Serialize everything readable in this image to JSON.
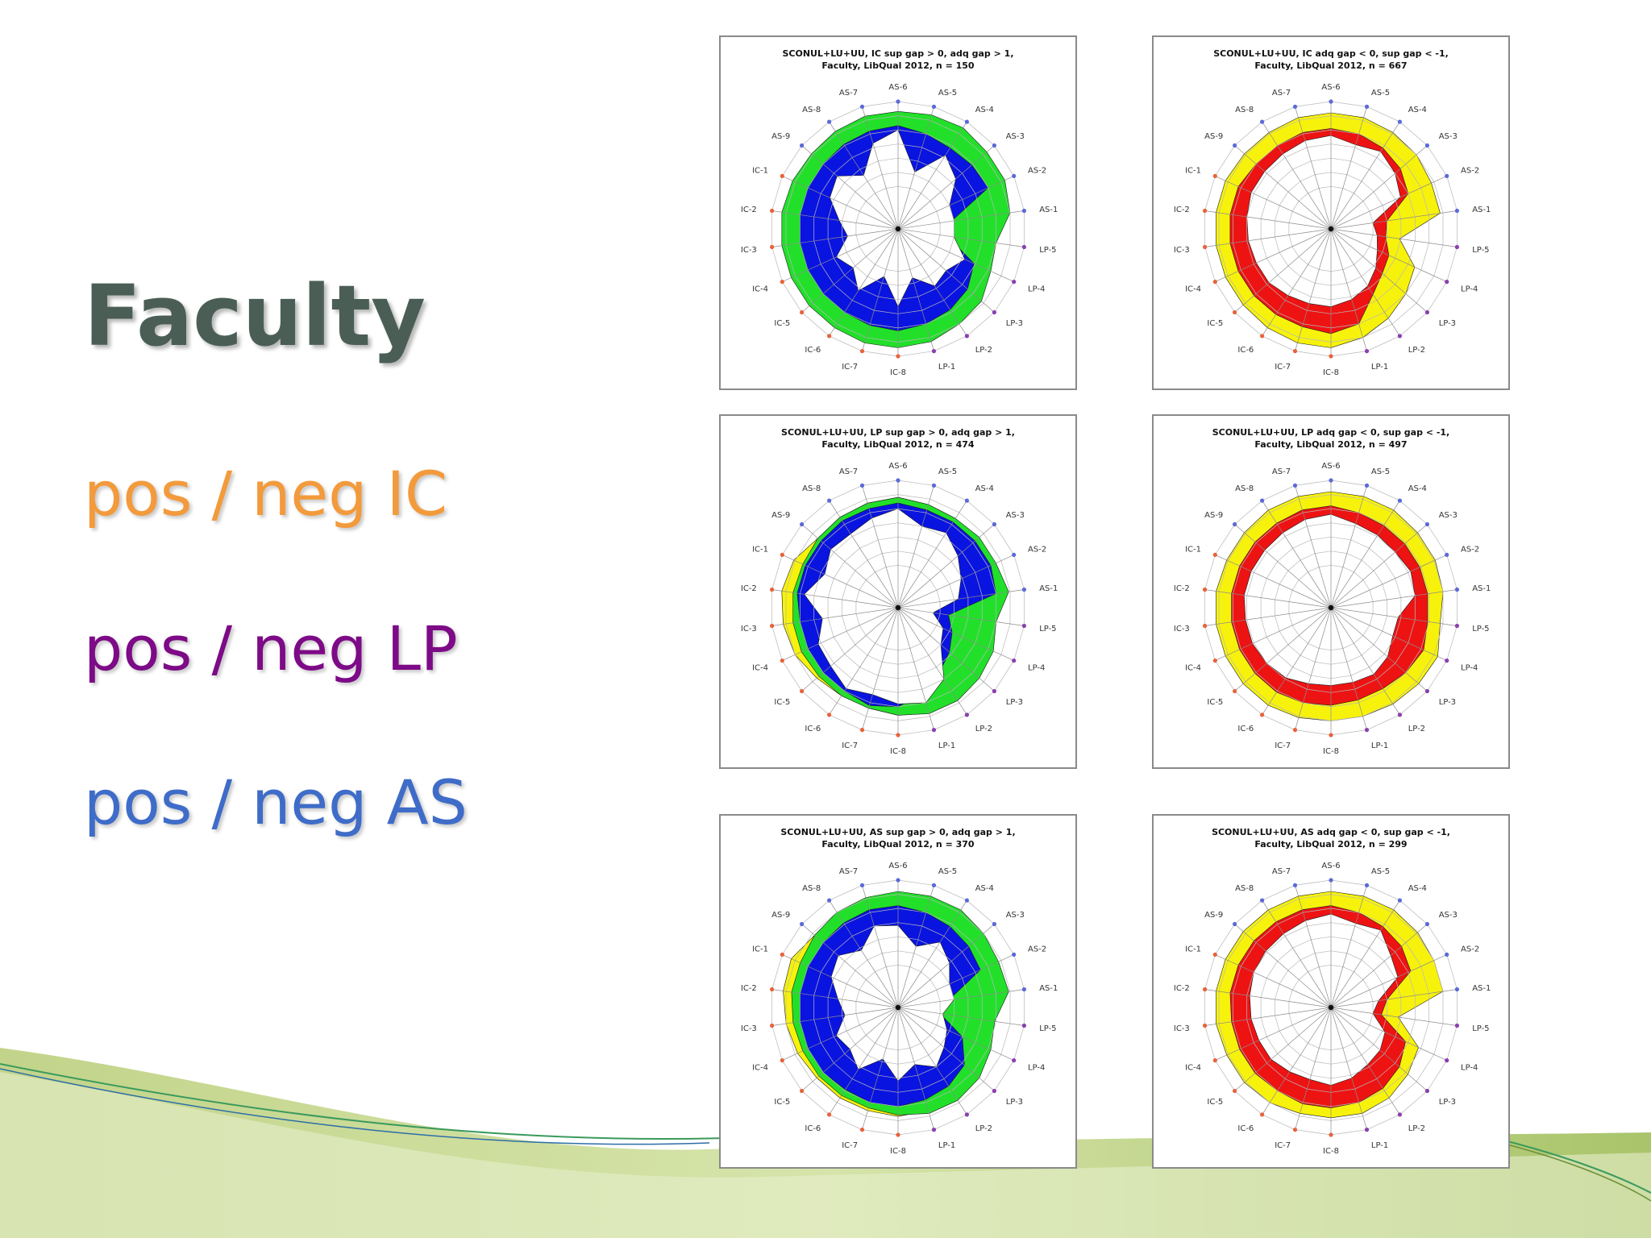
{
  "slide": {
    "title": "Faculty",
    "legend": [
      {
        "text": "pos / neg IC",
        "color": "#f39a3c"
      },
      {
        "text": "pos / neg LP",
        "color": "#7d0a86"
      },
      {
        "text": "pos / neg AS",
        "color": "#3e6cc8"
      }
    ]
  },
  "chart_data": [
    {
      "type": "radar",
      "title": "SCONUL+LU+UU, IC sup gap > 0, adq gap > 1,",
      "subtitle": "Faculty, LibQual 2012, n = 150",
      "axes": [
        "AS-6",
        "AS-5",
        "AS-4",
        "AS-3",
        "AS-2",
        "AS-1",
        "LP-5",
        "LP-4",
        "LP-3",
        "LP-2",
        "LP-1",
        "IC-8",
        "IC-7",
        "IC-6",
        "IC-5",
        "IC-4",
        "IC-3",
        "IC-2",
        "IC-1",
        "AS-9",
        "AS-8",
        "AS-7"
      ],
      "rlim": [
        0,
        9
      ],
      "rings": [
        3,
        4,
        5,
        6,
        7,
        8,
        9
      ],
      "series": [
        {
          "color": "#22e02a",
          "values": [
            8.3,
            8.4,
            8.5,
            8.3,
            8.3,
            8.0,
            7.0,
            7.2,
            7.8,
            8.0,
            8.3,
            8.4,
            8.4,
            8.3,
            8.3,
            8.3,
            8.3,
            8.3,
            8.2,
            8.1,
            8.2,
            8.3
          ]
        },
        {
          "color": "#0a14e0",
          "values": [
            7.3,
            7.0,
            6.8,
            6.9,
            7.0,
            3.8,
            3.5,
            5.9,
            6.5,
            6.8,
            7.0,
            7.2,
            7.1,
            7.0,
            7.0,
            7.0,
            7.0,
            7.0,
            7.0,
            7.0,
            7.1,
            7.2
          ]
        },
        {
          "color": "#ffffff",
          "values": [
            7.0,
            4.2,
            6.2,
            5.4,
            4.0,
            4.0,
            4.0,
            5.2,
            4.5,
            4.8,
            3.6,
            5.5,
            3.5,
            5.2,
            4.2,
            4.8,
            3.6,
            4.2,
            5.3,
            5.7,
            4.5,
            6.3
          ]
        }
      ]
    },
    {
      "type": "radar",
      "title": "SCONUL+LU+UU, IC adq gap < 0, sup gap < -1,",
      "subtitle": "Faculty, LibQual 2012, n = 667",
      "axes": [
        "AS-6",
        "AS-5",
        "AS-4",
        "AS-3",
        "AS-2",
        "AS-1",
        "LP-5",
        "LP-4",
        "LP-3",
        "LP-2",
        "LP-1",
        "IC-8",
        "IC-7",
        "IC-6",
        "IC-5",
        "IC-4",
        "IC-3",
        "IC-2",
        "IC-1",
        "AS-9",
        "AS-8",
        "AS-7"
      ],
      "rlim": [
        0,
        9
      ],
      "rings": [
        3,
        4,
        5,
        6,
        7,
        8,
        9
      ],
      "series": [
        {
          "color": "#f7f20c",
          "values": [
            8.2,
            8.2,
            8.1,
            8.0,
            7.8,
            7.8,
            4.9,
            6.5,
            7.0,
            7.5,
            8.0,
            8.4,
            8.4,
            8.3,
            8.2,
            8.2,
            8.2,
            8.2,
            8.2,
            8.1,
            8.1,
            8.2
          ]
        },
        {
          "color": "#ee1313",
          "values": [
            7.1,
            7.0,
            6.8,
            6.5,
            6.0,
            4.0,
            3.9,
            4.5,
            4.8,
            5.5,
            7.0,
            7.4,
            7.2,
            7.2,
            7.2,
            7.2,
            7.2,
            7.2,
            7.2,
            7.0,
            7.0,
            7.1
          ]
        },
        {
          "color": "#ffffff",
          "values": [
            6.6,
            6.2,
            6.5,
            6.0,
            5.4,
            3.0,
            3.3,
            3.6,
            4.2,
            4.8,
            5.2,
            5.5,
            5.5,
            5.6,
            5.8,
            5.8,
            5.9,
            6.0,
            6.2,
            6.2,
            6.3,
            6.5
          ]
        }
      ]
    },
    {
      "type": "radar",
      "title": "SCONUL+LU+UU, LP sup gap > 0, adq gap > 1,",
      "subtitle": "Faculty, LibQual 2012, n = 474",
      "axes": [
        "AS-6",
        "AS-5",
        "AS-4",
        "AS-3",
        "AS-2",
        "AS-1",
        "LP-5",
        "LP-4",
        "LP-3",
        "LP-2",
        "LP-1",
        "IC-8",
        "IC-7",
        "IC-6",
        "IC-5",
        "IC-4",
        "IC-3",
        "IC-2",
        "IC-1",
        "AS-9",
        "AS-8",
        "AS-7"
      ],
      "rlim": [
        0,
        9
      ],
      "rings": [
        3,
        4,
        5,
        6,
        7,
        8,
        9
      ],
      "series": [
        {
          "color": "#f7f20c",
          "values": [
            7.8,
            7.6,
            7.5,
            7.5,
            7.4,
            7.4,
            6.6,
            7.0,
            7.4,
            7.6,
            7.6,
            7.6,
            7.4,
            7.4,
            7.6,
            8.0,
            8.2,
            8.3,
            8.1,
            7.5,
            7.6,
            7.7
          ]
        },
        {
          "color": "#22e02a",
          "values": [
            7.8,
            7.6,
            7.5,
            7.6,
            7.6,
            7.9,
            7.0,
            7.4,
            7.6,
            7.8,
            7.8,
            7.6,
            7.4,
            7.4,
            7.4,
            7.5,
            7.5,
            7.5,
            7.4,
            7.5,
            7.6,
            7.7
          ]
        },
        {
          "color": "#0a14e0",
          "values": [
            7.4,
            7.2,
            7.2,
            7.2,
            7.2,
            7.0,
            3.6,
            4.2,
            4.8,
            5.4,
            6.3,
            7.0,
            7.2,
            7.0,
            7.0,
            7.0,
            7.0,
            7.2,
            7.2,
            7.2,
            7.3,
            7.3
          ]
        },
        {
          "color": "#ffffff",
          "values": [
            7.0,
            6.0,
            6.3,
            5.6,
            4.9,
            4.3,
            2.5,
            3.5,
            4.0,
            6.0,
            7.0,
            6.8,
            6.4,
            6.8,
            6.3,
            6.2,
            5.4,
            6.7,
            5.7,
            6.3,
            6.2,
            6.6
          ]
        }
      ]
    },
    {
      "type": "radar",
      "title": "SCONUL+LU+UU, LP adq gap < 0, sup gap < -1,",
      "subtitle": "Faculty, LibQual 2012, n = 497",
      "axes": [
        "AS-6",
        "AS-5",
        "AS-4",
        "AS-3",
        "AS-2",
        "AS-1",
        "LP-5",
        "LP-4",
        "LP-3",
        "LP-2",
        "LP-1",
        "IC-8",
        "IC-7",
        "IC-6",
        "IC-5",
        "IC-4",
        "IC-3",
        "IC-2",
        "IC-1",
        "AS-9",
        "AS-8",
        "AS-7"
      ],
      "rlim": [
        0,
        9
      ],
      "rings": [
        3,
        4,
        5,
        6,
        7,
        8,
        9
      ],
      "series": [
        {
          "color": "#f7f20c",
          "values": [
            8.2,
            8.2,
            8.2,
            8.1,
            8.1,
            8.0,
            7.8,
            8.3,
            8.2,
            8.1,
            8.0,
            8.0,
            8.1,
            8.2,
            8.2,
            8.2,
            8.2,
            8.2,
            8.1,
            8.1,
            8.2,
            8.2
          ]
        },
        {
          "color": "#ee1313",
          "values": [
            7.2,
            7.0,
            6.9,
            6.9,
            6.9,
            6.9,
            6.9,
            7.2,
            7.0,
            6.8,
            6.8,
            6.9,
            7.0,
            7.1,
            7.1,
            7.1,
            7.1,
            7.1,
            7.1,
            7.1,
            7.1,
            7.2
          ]
        },
        {
          "color": "#ffffff",
          "values": [
            6.6,
            6.2,
            6.1,
            6.0,
            6.2,
            6.0,
            4.8,
            4.8,
            5.3,
            5.6,
            5.5,
            5.5,
            5.6,
            5.9,
            6.0,
            6.1,
            6.1,
            6.2,
            6.2,
            6.2,
            6.3,
            6.5
          ]
        }
      ]
    },
    {
      "type": "radar",
      "title": "SCONUL+LU+UU, AS sup gap > 0, adq gap > 1,",
      "subtitle": "Faculty, LibQual 2012, n = 370",
      "axes": [
        "AS-6",
        "AS-5",
        "AS-4",
        "AS-3",
        "AS-2",
        "AS-1",
        "LP-5",
        "LP-4",
        "LP-3",
        "LP-2",
        "LP-1",
        "IC-8",
        "IC-7",
        "IC-6",
        "IC-5",
        "IC-4",
        "IC-3",
        "IC-2",
        "IC-1",
        "AS-9",
        "AS-8",
        "AS-7"
      ],
      "rlim": [
        0,
        9
      ],
      "rings": [
        3,
        4,
        5,
        6,
        7,
        8,
        9
      ],
      "series": [
        {
          "color": "#f7f20c",
          "values": [
            7.8,
            7.7,
            7.6,
            7.6,
            7.6,
            7.4,
            6.6,
            6.8,
            7.2,
            7.5,
            7.6,
            7.7,
            7.6,
            7.6,
            7.6,
            7.8,
            8.0,
            8.2,
            8.3,
            7.8,
            7.8,
            7.8
          ]
        },
        {
          "color": "#22e02a",
          "values": [
            8.2,
            8.2,
            8.2,
            8.0,
            7.8,
            7.9,
            6.9,
            7.2,
            7.6,
            7.8,
            7.8,
            7.6,
            7.4,
            7.4,
            7.4,
            7.4,
            7.5,
            7.6,
            7.6,
            7.8,
            8.0,
            8.1
          ]
        },
        {
          "color": "#0a14e0",
          "values": [
            7.2,
            7.0,
            6.8,
            6.6,
            6.4,
            3.6,
            3.0,
            5.0,
            6.2,
            6.6,
            6.8,
            7.0,
            7.0,
            6.9,
            7.0,
            7.0,
            7.0,
            7.0,
            7.0,
            7.0,
            7.1,
            7.2
          ]
        },
        {
          "color": "#ffffff",
          "values": [
            5.8,
            4.5,
            5.5,
            4.8,
            4.0,
            4.0,
            3.2,
            3.8,
            4.3,
            5.0,
            4.2,
            5.2,
            3.8,
            5.2,
            4.5,
            4.8,
            3.8,
            4.3,
            5.2,
            5.6,
            4.8,
            6.0
          ]
        }
      ]
    },
    {
      "type": "radar",
      "title": "SCONUL+LU+UU, AS adq gap < 0, sup gap < -1,",
      "subtitle": "Faculty, LibQual 2012, n = 299",
      "axes": [
        "AS-6",
        "AS-5",
        "AS-4",
        "AS-3",
        "AS-2",
        "AS-1",
        "LP-5",
        "LP-4",
        "LP-3",
        "LP-2",
        "LP-1",
        "IC-8",
        "IC-7",
        "IC-6",
        "IC-5",
        "IC-4",
        "IC-3",
        "IC-2",
        "IC-1",
        "AS-9",
        "AS-8",
        "AS-7"
      ],
      "rlim": [
        0,
        9
      ],
      "rings": [
        3,
        4,
        5,
        6,
        7,
        8,
        9
      ],
      "series": [
        {
          "color": "#f7f20c",
          "values": [
            8.2,
            8.2,
            8.2,
            8.1,
            8.0,
            8.0,
            4.8,
            6.8,
            7.2,
            7.6,
            7.8,
            7.8,
            7.8,
            8.0,
            8.1,
            8.1,
            8.2,
            8.2,
            8.2,
            8.2,
            8.2,
            8.2
          ]
        },
        {
          "color": "#ee1313",
          "values": [
            7.2,
            7.0,
            6.8,
            6.6,
            6.2,
            4.0,
            3.6,
            5.8,
            6.4,
            6.8,
            7.0,
            7.1,
            7.1,
            7.0,
            7.1,
            7.1,
            7.1,
            7.2,
            7.2,
            7.2,
            7.2,
            7.2
          ]
        },
        {
          "color": "#ffffff",
          "values": [
            6.6,
            6.2,
            6.5,
            5.6,
            5.2,
            3.4,
            3.0,
            4.2,
            4.6,
            4.8,
            5.2,
            5.5,
            5.3,
            5.4,
            5.6,
            5.6,
            5.7,
            5.8,
            6.0,
            6.1,
            6.2,
            6.4
          ]
        }
      ]
    }
  ]
}
